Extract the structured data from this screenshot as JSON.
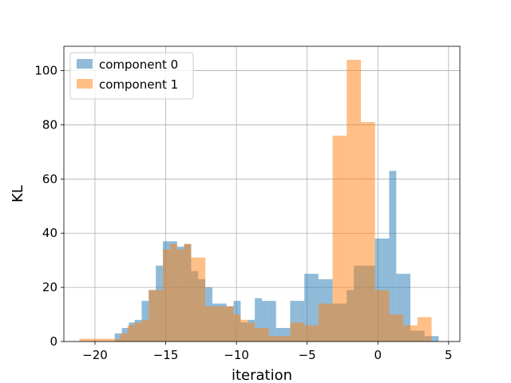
{
  "chart_data": {
    "type": "bar",
    "subtype": "overlapping-histogram",
    "title": "",
    "xlabel": "iteration",
    "ylabel": "KL",
    "xlim": [
      -22.2,
      5.8
    ],
    "ylim": [
      0,
      109
    ],
    "xticks": [
      -20,
      -15,
      -10,
      -5,
      0,
      5
    ],
    "xtick_labels": [
      "−20",
      "−15",
      "−10",
      "−5",
      "0",
      "5"
    ],
    "yticks": [
      0,
      20,
      40,
      60,
      80,
      100
    ],
    "ytick_labels": [
      "0",
      "20",
      "40",
      "60",
      "80",
      "100"
    ],
    "grid": true,
    "legend_position": "top-left",
    "series": [
      {
        "name": "component 0",
        "color": "#1f77b4",
        "alpha": 0.5,
        "bins": [
          [
            -18.6,
            -18.1,
            3
          ],
          [
            -18.1,
            -17.6,
            5
          ],
          [
            -17.6,
            -17.2,
            7
          ],
          [
            -17.2,
            -16.7,
            8
          ],
          [
            -16.7,
            -16.2,
            15
          ],
          [
            -16.2,
            -15.7,
            19
          ],
          [
            -15.7,
            -15.2,
            28
          ],
          [
            -15.2,
            -14.7,
            37
          ],
          [
            -14.7,
            -14.2,
            37
          ],
          [
            -14.2,
            -13.7,
            35
          ],
          [
            -13.7,
            -13.2,
            36
          ],
          [
            -13.2,
            -12.7,
            26
          ],
          [
            -12.7,
            -12.2,
            23
          ],
          [
            -12.2,
            -11.7,
            20
          ],
          [
            -11.7,
            -11.2,
            14
          ],
          [
            -11.2,
            -10.7,
            14
          ],
          [
            -10.7,
            -10.2,
            13
          ],
          [
            -10.2,
            -9.7,
            15
          ],
          [
            -9.7,
            -9.2,
            7
          ],
          [
            -9.2,
            -8.7,
            8
          ],
          [
            -8.7,
            -8.2,
            16
          ],
          [
            -8.2,
            -7.7,
            15
          ],
          [
            -7.7,
            -7.2,
            15
          ],
          [
            -7.2,
            -6.7,
            5
          ],
          [
            -6.7,
            -6.2,
            5
          ],
          [
            -6.2,
            -5.7,
            15
          ],
          [
            -5.7,
            -5.2,
            15
          ],
          [
            -5.2,
            -4.7,
            25
          ],
          [
            -4.7,
            -4.2,
            25
          ],
          [
            -4.2,
            -3.7,
            23
          ],
          [
            -3.7,
            -3.2,
            23
          ],
          [
            -3.2,
            -2.7,
            14
          ],
          [
            -2.7,
            -2.2,
            14
          ],
          [
            -2.2,
            -1.7,
            19
          ],
          [
            -1.7,
            -1.2,
            28
          ],
          [
            -1.2,
            -0.7,
            28
          ],
          [
            -0.7,
            -0.2,
            28
          ],
          [
            -0.2,
            0.3,
            38
          ],
          [
            0.3,
            0.8,
            38
          ],
          [
            0.8,
            1.3,
            63
          ],
          [
            1.3,
            1.8,
            25
          ],
          [
            1.8,
            2.3,
            25
          ],
          [
            2.3,
            2.8,
            4
          ],
          [
            2.8,
            3.3,
            4
          ],
          [
            3.3,
            3.8,
            2
          ],
          [
            3.8,
            4.3,
            2
          ]
        ]
      },
      {
        "name": "component 1",
        "color": "#ff7f0e",
        "alpha": 0.5,
        "bins": [
          [
            -21.1,
            -20.2,
            1
          ],
          [
            -20.2,
            -19.2,
            1
          ],
          [
            -19.2,
            -18.2,
            1
          ],
          [
            -18.2,
            -17.7,
            3
          ],
          [
            -17.7,
            -17.2,
            6
          ],
          [
            -17.2,
            -16.7,
            7
          ],
          [
            -16.7,
            -16.2,
            8
          ],
          [
            -16.2,
            -15.7,
            19
          ],
          [
            -15.7,
            -15.2,
            19
          ],
          [
            -15.2,
            -14.7,
            34
          ],
          [
            -14.7,
            -14.2,
            36
          ],
          [
            -14.2,
            -13.7,
            34
          ],
          [
            -13.7,
            -13.2,
            36
          ],
          [
            -13.2,
            -12.7,
            31
          ],
          [
            -12.7,
            -12.2,
            31
          ],
          [
            -12.2,
            -11.7,
            13
          ],
          [
            -11.7,
            -11.2,
            13
          ],
          [
            -11.2,
            -10.7,
            13
          ],
          [
            -10.7,
            -10.2,
            13
          ],
          [
            -10.2,
            -9.7,
            10
          ],
          [
            -9.7,
            -9.2,
            8
          ],
          [
            -9.2,
            -8.7,
            7
          ],
          [
            -8.7,
            -8.2,
            5
          ],
          [
            -8.2,
            -7.7,
            5
          ],
          [
            -7.7,
            -7.2,
            2
          ],
          [
            -7.2,
            -6.7,
            2
          ],
          [
            -6.7,
            -6.2,
            2
          ],
          [
            -6.2,
            -5.7,
            7
          ],
          [
            -5.7,
            -5.2,
            7
          ],
          [
            -5.2,
            -4.7,
            6
          ],
          [
            -4.7,
            -4.2,
            6
          ],
          [
            -4.2,
            -3.7,
            14
          ],
          [
            -3.7,
            -3.2,
            14
          ],
          [
            -3.2,
            -2.7,
            76
          ],
          [
            -2.7,
            -2.2,
            76
          ],
          [
            -2.2,
            -1.7,
            104
          ],
          [
            -1.7,
            -1.2,
            104
          ],
          [
            -1.2,
            -0.7,
            81
          ],
          [
            -0.7,
            -0.2,
            81
          ],
          [
            -0.2,
            0.3,
            19
          ],
          [
            0.3,
            0.8,
            19
          ],
          [
            0.8,
            1.3,
            10
          ],
          [
            1.3,
            1.8,
            10
          ],
          [
            1.8,
            2.3,
            6
          ],
          [
            2.3,
            2.8,
            6
          ],
          [
            2.8,
            3.3,
            9
          ],
          [
            3.3,
            3.8,
            9
          ]
        ]
      }
    ]
  }
}
